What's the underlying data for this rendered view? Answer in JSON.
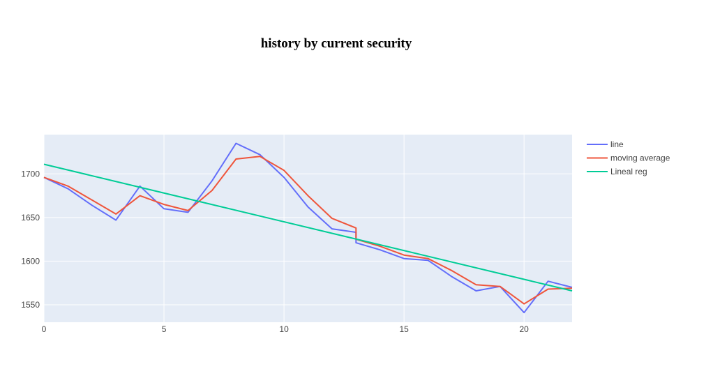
{
  "chart_data": {
    "type": "line",
    "title": "history by current security",
    "xlabel": "",
    "ylabel": "",
    "xlim": [
      0,
      22
    ],
    "ylim": [
      1530,
      1745
    ],
    "x_ticks": [
      0,
      5,
      10,
      15,
      20
    ],
    "y_ticks": [
      1550,
      1600,
      1650,
      1700
    ],
    "grid": true,
    "plot_background": "#E5ECF6",
    "legend_position": "top-right",
    "series": [
      {
        "name": "line",
        "color": "#636EFA",
        "x": [
          0,
          1,
          2,
          3,
          4,
          5,
          6,
          7,
          8,
          9,
          10,
          11,
          12,
          13,
          13,
          14,
          15,
          16,
          17,
          18,
          19,
          20,
          21,
          22
        ],
        "y": [
          1696,
          1683,
          1664,
          1647,
          1686,
          1660,
          1656,
          1692,
          1735,
          1722,
          1696,
          1662,
          1637,
          1633,
          1621,
          1613,
          1603,
          1601,
          1582,
          1566,
          1571,
          1541,
          1577,
          1570
        ]
      },
      {
        "name": "moving average",
        "color": "#EF553B",
        "x": [
          0,
          1,
          2,
          3,
          4,
          5,
          6,
          7,
          8,
          9,
          10,
          11,
          12,
          13,
          13,
          14,
          15,
          16,
          17,
          18,
          19,
          20,
          21,
          22
        ],
        "y": [
          1696,
          1686,
          1670,
          1654,
          1675,
          1665,
          1658,
          1681,
          1717,
          1720,
          1704,
          1675,
          1649,
          1638,
          1625,
          1617,
          1607,
          1603,
          1589,
          1573,
          1571,
          1551,
          1568,
          1569
        ]
      },
      {
        "name": "Lineal reg",
        "color": "#00CC96",
        "x": [
          0,
          22
        ],
        "y": [
          1711,
          1566
        ]
      }
    ]
  }
}
